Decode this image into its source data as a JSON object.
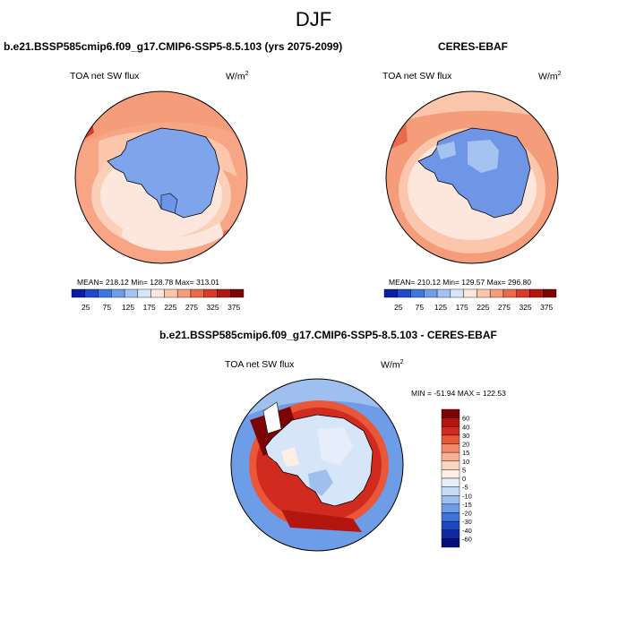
{
  "figure": {
    "title": "DJF"
  },
  "panels": [
    {
      "title": "b.e21.BSSP585cmip6.f09_g17.CMIP6-SSP5-8.5.103 (yrs 2075-2099)",
      "variable": "TOA net SW flux",
      "units": "W/m",
      "units_sup": "2",
      "stats": "MEAN= 218.12  Min= 128.78  Max= 313.01",
      "colorbar_ticks": [
        "25",
        "75",
        "125",
        "175",
        "225",
        "275",
        "325",
        "375"
      ],
      "colorbar_colors": [
        "#0d1da3",
        "#2149c9",
        "#3a78dd",
        "#6f9ceb",
        "#a5c3f1",
        "#d6e5f8",
        "#fde7dc",
        "#fbc6ab",
        "#f59d7b",
        "#ec6a4c",
        "#d73a27",
        "#b2160f",
        "#7d0404"
      ]
    },
    {
      "title": "CERES-EBAF",
      "variable": "TOA net SW flux",
      "units": "W/m",
      "units_sup": "2",
      "stats": "MEAN= 210.12  Min= 129.57  Max= 296.80",
      "colorbar_ticks": [
        "25",
        "75",
        "125",
        "175",
        "225",
        "275",
        "325",
        "375"
      ],
      "colorbar_colors": [
        "#0d1da3",
        "#2149c9",
        "#3a78dd",
        "#6f9ceb",
        "#a5c3f1",
        "#d6e5f8",
        "#fde7dc",
        "#fbc6ab",
        "#f59d7b",
        "#ec6a4c",
        "#d73a27",
        "#b2160f",
        "#7d0404"
      ]
    },
    {
      "title": "b.e21.BSSP585cmip6.f09_g17.CMIP6-SSP5-8.5.103 - CERES-EBAF",
      "variable": "TOA net SW flux",
      "units": "W/m",
      "units_sup": "2",
      "stats": "MIN = -51.94 MAX = 122.53",
      "colorbar_ticks": [
        "60",
        "40",
        "30",
        "20",
        "15",
        "10",
        "5",
        "0",
        "-5",
        "-10",
        "-15",
        "-20",
        "-30",
        "-40",
        "-60"
      ],
      "colorbar_colors": [
        "#7d0404",
        "#b2160f",
        "#d12a1e",
        "#ea5638",
        "#f48a69",
        "#f9b193",
        "#fcd5c1",
        "#fdeee5",
        "#e5eefa",
        "#c6daf5",
        "#9fc0ee",
        "#6d9de6",
        "#3d74db",
        "#1d48c4",
        "#0d2aa2",
        "#050f7a"
      ]
    }
  ]
}
